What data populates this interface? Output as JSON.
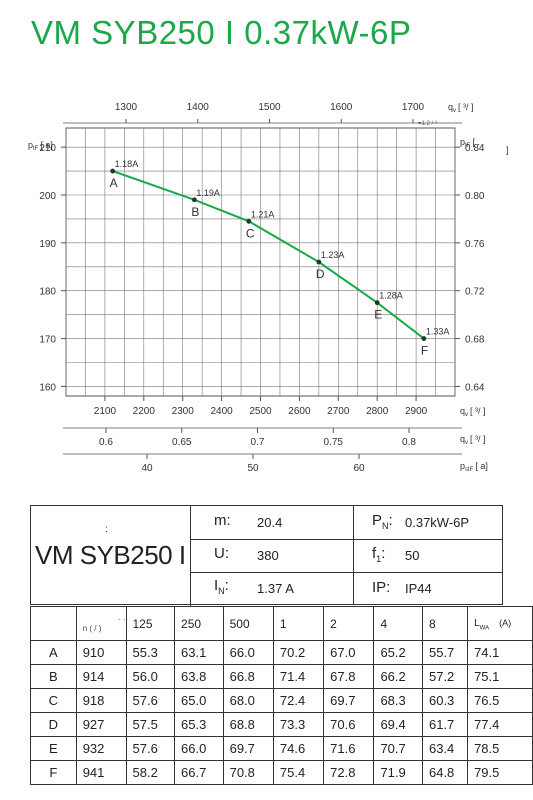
{
  "title": "VM SYB250 I 0.37kW-6P",
  "chart_data": {
    "type": "line",
    "x": [
      2120,
      2330,
      2470,
      2650,
      2800,
      2920
    ],
    "y": [
      205,
      199,
      194.5,
      186,
      177.5,
      170
    ],
    "points": [
      {
        "label": "A",
        "current": "1.18A"
      },
      {
        "label": "B",
        "current": "1.19A"
      },
      {
        "label": "C",
        "current": "1.21A"
      },
      {
        "label": "D",
        "current": "1.23A"
      },
      {
        "label": "E",
        "current": "1.28A"
      },
      {
        "label": "F",
        "current": "1.33A"
      }
    ],
    "xlim": [
      2000,
      3000
    ],
    "ylim": [
      158,
      214
    ],
    "x_ticks": [
      "2100",
      "2200",
      "2300",
      "2400",
      "2500",
      "2600",
      "2700",
      "2800",
      "2900"
    ],
    "y_ticks": [
      "160",
      "170",
      "180",
      "190",
      "200",
      "210"
    ],
    "top_ticks": [
      "1300",
      "1400",
      "1500",
      "1600",
      "1700"
    ],
    "top_tick_values": [
      1300,
      1400,
      1500,
      1600,
      1700
    ],
    "right_ticks": [
      "0.64",
      "0.68",
      "0.72",
      "0.76",
      "0.80",
      "0.84"
    ],
    "right_tick_values": [
      0.64,
      0.68,
      0.72,
      0.76,
      0.8,
      0.84
    ],
    "axis2_ticks": [
      "0.6",
      "0.65",
      "0.7",
      "0.75",
      "0.8"
    ],
    "axis2_tick_values": [
      0.6,
      0.65,
      0.7,
      0.75,
      0.8
    ],
    "axis3_ticks": [
      "40",
      "50",
      "60"
    ],
    "axis3_tick_values": [
      40,
      50,
      60
    ],
    "labels": {
      "left": "p",
      "left_sub": "tF",
      "left_unit": "[   a]",
      "right": "p",
      "right_sub": "tF",
      "right_unit": "[      .",
      "right_unit2": "]",
      "top": "q",
      "top_sub": "v",
      "top_unit": "[    ³/     ]",
      "top_small": "=1.2   /   ³",
      "bottom": "q",
      "bottom_sub": "v",
      "bottom_unit": "[  ³/  ]",
      "axis2": "q",
      "axis2_sub": "v",
      "axis2_unit": "[  ³/  ]",
      "axis3": "p",
      "axis3_sub": "stF",
      "axis3_unit": "[  a]"
    },
    "line_color": "#1aa84a",
    "grid": true
  },
  "spec": {
    "model": "VM SYB250 I",
    "colon": ":",
    "m_label": "m:",
    "m_value": "20.4",
    "u_label": "U:",
    "u_value": "380",
    "in_label": "I",
    "in_sub": "N",
    "in_colon": ":",
    "in_value": "1.37  A",
    "pn_label": "P",
    "pn_sub": "N",
    "pn_colon": ":",
    "pn_value": "0.37kW-6P",
    "f_label": "f",
    "f_sub": "1",
    "f_colon": ":",
    "f_value": "50",
    "ip_label": "IP:",
    "ip_value": "IP44"
  },
  "table": {
    "header_col2_top": "·   ·",
    "header_col2_bottom": "n  (  /  )",
    "bands": [
      "125",
      "250",
      "500",
      "1",
      "2",
      "4",
      "8"
    ],
    "lwa_label": "L",
    "lwa_sub": "WA",
    "lwa_unit": "(A)",
    "rows": [
      {
        "label": "A",
        "n": "910",
        "v": [
          "55.3",
          "63.1",
          "66.0",
          "70.2",
          "67.0",
          "65.2",
          "55.7"
        ],
        "lwa": "74.1"
      },
      {
        "label": "B",
        "n": "914",
        "v": [
          "56.0",
          "63.8",
          "66.8",
          "71.4",
          "67.8",
          "66.2",
          "57.2"
        ],
        "lwa": "75.1"
      },
      {
        "label": "C",
        "n": "918",
        "v": [
          "57.6",
          "65.0",
          "68.0",
          "72.4",
          "69.7",
          "68.3",
          "60.3"
        ],
        "lwa": "76.5"
      },
      {
        "label": "D",
        "n": "927",
        "v": [
          "57.5",
          "65.3",
          "68.8",
          "73.3",
          "70.6",
          "69.4",
          "61.7"
        ],
        "lwa": "77.4"
      },
      {
        "label": "E",
        "n": "932",
        "v": [
          "57.6",
          "66.0",
          "69.7",
          "74.6",
          "71.6",
          "70.7",
          "63.4"
        ],
        "lwa": "78.5"
      },
      {
        "label": "F",
        "n": "941",
        "v": [
          "58.2",
          "66.7",
          "70.8",
          "75.4",
          "72.8",
          "71.9",
          "64.8"
        ],
        "lwa": "79.5"
      }
    ]
  }
}
